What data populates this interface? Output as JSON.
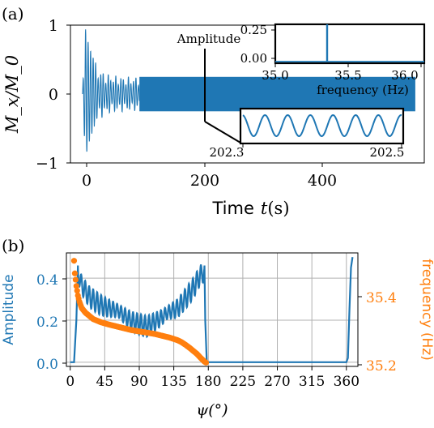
{
  "chart_data": [
    {
      "panel_label": "(a)",
      "type": "line",
      "xlabel_prefix": "Time",
      "xlabel_var": "t",
      "xlabel_unit": "(s)",
      "ylabel": "M_x/M_0",
      "xlim": [
        -20,
        570
      ],
      "ylim": [
        -1,
        1
      ],
      "xticks": [
        "0",
        "200",
        "400"
      ],
      "yticks": [
        "1",
        "0",
        "−1"
      ],
      "signal": {
        "t_end": 555,
        "envelope_peak": 0.95,
        "steady_amplitude": 0.25,
        "color": "#1f77b4"
      },
      "inset_spectrum": {
        "ylabel": "Amplitude",
        "xlabel": "frequency (Hz)",
        "xticks": [
          "35.0",
          "35.5",
          "36.0"
        ],
        "yticks": [
          "0.25",
          "0.00"
        ],
        "xlim": [
          35.0,
          36.0
        ],
        "ylim": [
          0,
          0.3
        ],
        "peak": {
          "x": 35.33,
          "y": 0.32
        }
      },
      "inset_zoom": {
        "xticks": [
          "202.3",
          "202.5"
        ],
        "xlim": [
          202.3,
          202.5
        ],
        "cycles": 7
      }
    },
    {
      "panel_label": "(b)",
      "type": "line",
      "xlabel": "ψ(°)",
      "ylabel_left": "Amplitude",
      "ylabel_right": "frequency (Hz)",
      "xlim": [
        -5,
        375
      ],
      "xticks": [
        "0",
        "45",
        "90",
        "135",
        "180",
        "225",
        "270",
        "315",
        "360"
      ],
      "ylim_left": [
        -0.02,
        0.52
      ],
      "yticks_left": [
        "0.4",
        "0.2",
        "0.0"
      ],
      "ylim_right": [
        35.185,
        35.545
      ],
      "yticks_right": [
        "35.4",
        "35.2"
      ],
      "colors": {
        "amplitude": "#1f77b4",
        "frequency": "#ff7f0e"
      },
      "series": [
        {
          "name": "Amplitude",
          "x": [
            0,
            5,
            8,
            10,
            15,
            25,
            40,
            60,
            80,
            100,
            120,
            140,
            150,
            160,
            168,
            172,
            175,
            176,
            178,
            180,
            200,
            250,
            300,
            350,
            360,
            362,
            364,
            366,
            368
          ],
          "y": [
            0,
            0,
            0.2,
            0.46,
            0.41,
            0.36,
            0.32,
            0.28,
            0.24,
            0.22,
            0.25,
            0.3,
            0.35,
            0.4,
            0.45,
            0.47,
            0.46,
            0.2,
            0,
            0,
            0,
            0,
            0,
            0,
            0,
            0.02,
            0.25,
            0.45,
            0.5
          ]
        },
        {
          "name": "frequency",
          "x": [
            5,
            6,
            8,
            10,
            12,
            15,
            20,
            25,
            30,
            40,
            50,
            60,
            70,
            80,
            90,
            100,
            110,
            120,
            130,
            140,
            145,
            150,
            155,
            160,
            165,
            170,
            173,
            175,
            177
          ],
          "y": [
            35.52,
            35.48,
            35.44,
            35.41,
            35.39,
            35.37,
            35.355,
            35.345,
            35.335,
            35.325,
            35.318,
            35.312,
            35.306,
            35.3,
            35.296,
            35.292,
            35.288,
            35.282,
            35.276,
            35.268,
            35.262,
            35.254,
            35.245,
            35.235,
            35.225,
            35.212,
            35.205,
            35.2,
            35.197
          ]
        }
      ]
    }
  ]
}
